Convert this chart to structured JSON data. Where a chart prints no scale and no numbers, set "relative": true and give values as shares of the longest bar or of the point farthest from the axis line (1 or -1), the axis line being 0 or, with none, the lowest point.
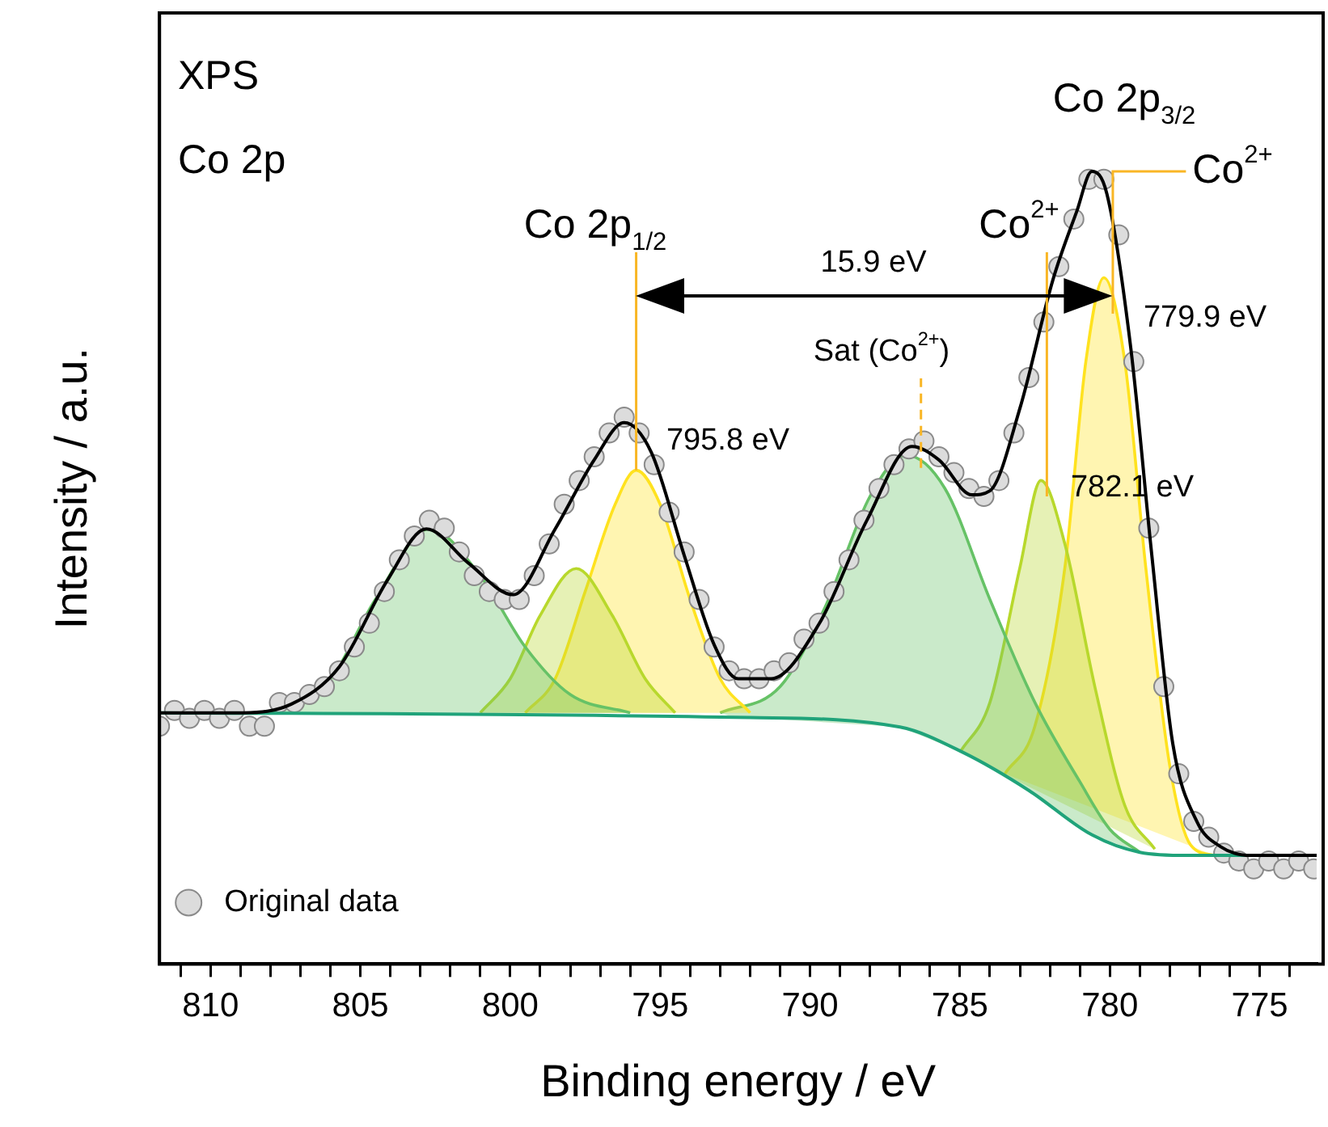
{
  "chart_data": {
    "type": "line",
    "relative": true,
    "xlabel": "Binding energy / eV",
    "ylabel": "Intensity / a.u.",
    "xlim": [
      811.7,
      773.1
    ],
    "xticks": [
      {
        "value": 811,
        "label": null
      },
      810,
      {
        "value": 809,
        "label": null
      },
      {
        "value": 808,
        "label": null
      },
      {
        "value": 807,
        "label": null
      },
      {
        "value": 806,
        "label": null
      },
      805,
      {
        "value": 804,
        "label": null
      },
      {
        "value": 803,
        "label": null
      },
      {
        "value": 802,
        "label": null
      },
      {
        "value": 801,
        "label": null
      },
      800,
      {
        "value": 799,
        "label": null
      },
      {
        "value": 798,
        "label": null
      },
      {
        "value": 797,
        "label": null
      },
      {
        "value": 796,
        "label": null
      },
      795,
      {
        "value": 794,
        "label": null
      },
      {
        "value": 793,
        "label": null
      },
      {
        "value": 792,
        "label": null
      },
      {
        "value": 791,
        "label": null
      },
      790,
      {
        "value": 789,
        "label": null
      },
      {
        "value": 788,
        "label": null
      },
      {
        "value": 787,
        "label": null
      },
      {
        "value": 786,
        "label": null
      },
      785,
      {
        "value": 784,
        "label": null
      },
      {
        "value": 783,
        "label": null
      },
      {
        "value": 782,
        "label": null
      },
      {
        "value": 781,
        "label": null
      },
      780,
      {
        "value": 779,
        "label": null
      },
      {
        "value": 778,
        "label": null
      },
      {
        "value": 777,
        "label": null
      },
      {
        "value": 776,
        "label": null
      },
      775,
      {
        "value": 774,
        "label": null
      }
    ],
    "grid": false,
    "legend": "bottom left",
    "series": [
      {
        "type": "area",
        "color": "#66c266",
        "x": [
          808,
          806,
          804.5,
          802.7,
          801,
          799.5,
          798,
          796
        ],
        "values": [
          0.317,
          0.36,
          0.46,
          0.549,
          0.49,
          0.4,
          0.34,
          0.317
        ]
      },
      {
        "type": "area",
        "color": "#b8d82c",
        "x": [
          801,
          800,
          799,
          797.8,
          796.6,
          795.5,
          794.5
        ],
        "values": [
          0.317,
          0.36,
          0.44,
          0.499,
          0.44,
          0.36,
          0.317
        ]
      },
      {
        "type": "area",
        "color": "#ffe21f",
        "x": [
          799.5,
          798.5,
          797.5,
          796.5,
          795.8,
          795,
          794,
          793,
          792
        ],
        "values": [
          0.317,
          0.36,
          0.47,
          0.58,
          0.623,
          0.58,
          0.46,
          0.36,
          0.317
        ]
      },
      {
        "type": "area",
        "color": "#66c266",
        "x": [
          793,
          791,
          789.5,
          788,
          786.8,
          785.5,
          784,
          782.5,
          781,
          780,
          779
        ],
        "values": [
          0.317,
          0.35,
          0.45,
          0.59,
          0.642,
          0.6,
          0.46,
          0.33,
          0.23,
          0.17,
          0.141
        ]
      },
      {
        "type": "area",
        "color": "#b8d82c",
        "x": [
          785,
          784,
          783,
          782.3,
          781.5,
          780.5,
          779.5,
          778.5
        ],
        "values": [
          0.267,
          0.33,
          0.5,
          0.61,
          0.53,
          0.35,
          0.2,
          0.145
        ]
      },
      {
        "type": "area",
        "color": "#ffe21f",
        "x": [
          783.5,
          782.5,
          781.5,
          780.8,
          780.2,
          779.5,
          778.8,
          778,
          777.3,
          776.5
        ],
        "values": [
          0.24,
          0.3,
          0.5,
          0.76,
          0.866,
          0.76,
          0.5,
          0.25,
          0.15,
          0.137
        ]
      },
      {
        "name": "Original data",
        "type": "scatter",
        "marker": "circle",
        "color": "#dcdcdc",
        "x": [
          811.7,
          811.2,
          810.7,
          810.2,
          809.7,
          809.2,
          808.7,
          808.2,
          807.7,
          807.2,
          806.7,
          806.2,
          805.7,
          805.2,
          804.7,
          804.2,
          803.7,
          803.2,
          802.7,
          802.2,
          801.7,
          801.2,
          800.7,
          800.2,
          799.7,
          799.2,
          798.7,
          798.2,
          797.7,
          797.2,
          796.7,
          796.2,
          795.7,
          795.2,
          794.7,
          794.2,
          793.7,
          793.2,
          792.7,
          792.2,
          791.7,
          791.2,
          790.7,
          790.2,
          789.7,
          789.2,
          788.7,
          788.2,
          787.7,
          787.2,
          786.7,
          786.2,
          785.7,
          785.2,
          784.7,
          784.2,
          783.7,
          783.2,
          782.7,
          782.2,
          781.7,
          781.2,
          780.7,
          780.2,
          779.7,
          779.2,
          778.7,
          778.2,
          777.7,
          777.2,
          776.7,
          776.2,
          775.7,
          775.2,
          774.7,
          774.2,
          773.7,
          773.2
        ],
        "values": [
          0.3,
          0.32,
          0.31,
          0.32,
          0.31,
          0.32,
          0.3,
          0.3,
          0.33,
          0.33,
          0.34,
          0.35,
          0.37,
          0.4,
          0.43,
          0.47,
          0.51,
          0.54,
          0.56,
          0.55,
          0.52,
          0.49,
          0.47,
          0.46,
          0.46,
          0.49,
          0.53,
          0.58,
          0.61,
          0.64,
          0.67,
          0.69,
          0.67,
          0.63,
          0.57,
          0.52,
          0.46,
          0.4,
          0.37,
          0.36,
          0.36,
          0.37,
          0.38,
          0.41,
          0.43,
          0.47,
          0.51,
          0.56,
          0.6,
          0.63,
          0.65,
          0.66,
          0.64,
          0.62,
          0.6,
          0.59,
          0.61,
          0.67,
          0.74,
          0.81,
          0.88,
          0.94,
          0.99,
          0.99,
          0.92,
          0.76,
          0.55,
          0.35,
          0.24,
          0.18,
          0.16,
          0.14,
          0.13,
          0.12,
          0.13,
          0.12,
          0.13,
          0.12
        ]
      },
      {
        "type": "line",
        "color": "#000000",
        "x": [
          811.7,
          808.9,
          807.3,
          805.7,
          804.1,
          802.8,
          801.4,
          799.9,
          798.5,
          797.2,
          796.2,
          795.3,
          794.2,
          793.2,
          792.4,
          791.3,
          789.7,
          788.1,
          786.6,
          785.7,
          784.6,
          784.0,
          783.0,
          781.9,
          781.1,
          780.6,
          780.1,
          779.3,
          778.6,
          777.9,
          777.1,
          776.3,
          775.3,
          773.1
        ],
        "values": [
          0.317,
          0.317,
          0.328,
          0.375,
          0.484,
          0.549,
          0.506,
          0.466,
          0.549,
          0.636,
          0.683,
          0.646,
          0.516,
          0.403,
          0.36,
          0.36,
          0.429,
          0.56,
          0.653,
          0.636,
          0.592,
          0.597,
          0.701,
          0.863,
          0.95,
          1.0,
          0.972,
          0.777,
          0.516,
          0.278,
          0.18,
          0.148,
          0.137,
          0.137
        ]
      },
      {
        "type": "line",
        "color": "#20a37a",
        "x": [
          811.7,
          792,
          787.0,
          784.9,
          782.7,
          780.6,
          779.0,
          777.4,
          773.1
        ],
        "values": [
          0.317,
          0.311,
          0.299,
          0.267,
          0.219,
          0.163,
          0.141,
          0.137,
          0.137
        ]
      }
    ],
    "ref_lines": [
      {
        "axis": "x",
        "value": 795.8,
        "color": "#f9b625"
      },
      {
        "axis": "x",
        "value": 782.1,
        "color": "#f9b625"
      },
      {
        "axis": "x",
        "value": 779.9,
        "color": "#f9b625"
      },
      {
        "axis": "x",
        "value": 786.3,
        "color": "#f9b625",
        "line_style": "dashed"
      }
    ],
    "annotations": [
      "XPS",
      "Co 2p",
      "Co 2p$_{3/2}$",
      "Co$^{2+}$",
      "Co$^{2+}$",
      "Co 2p$_{1/2}$",
      "15.9 eV",
      "Sat (Co$^{2+}$)",
      "795.8 eV",
      "782.1 eV",
      "779.9 eV"
    ]
  }
}
